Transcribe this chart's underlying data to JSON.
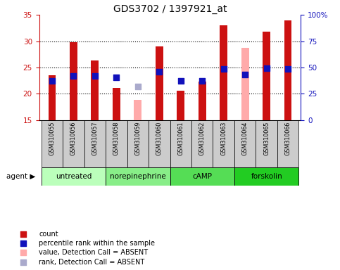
{
  "title": "GDS3702 / 1397921_at",
  "samples": [
    "GSM310055",
    "GSM310056",
    "GSM310057",
    "GSM310058",
    "GSM310059",
    "GSM310060",
    "GSM310061",
    "GSM310062",
    "GSM310063",
    "GSM310064",
    "GSM310065",
    "GSM310066"
  ],
  "agents": [
    {
      "label": "untreated",
      "start": 0,
      "end": 3,
      "color": "#bbffbb"
    },
    {
      "label": "norepinephrine",
      "start": 3,
      "end": 6,
      "color": "#88ee88"
    },
    {
      "label": "cAMP",
      "start": 6,
      "end": 9,
      "color": "#55dd55"
    },
    {
      "label": "forskolin",
      "start": 9,
      "end": 12,
      "color": "#22cc22"
    }
  ],
  "red_values": [
    23.5,
    29.8,
    26.3,
    21.1,
    null,
    29.0,
    20.6,
    22.3,
    33.0,
    null,
    31.8,
    34.0
  ],
  "pink_values": [
    null,
    null,
    null,
    null,
    18.8,
    null,
    null,
    null,
    null,
    28.7,
    null,
    null
  ],
  "blue_values": [
    22.5,
    23.4,
    23.4,
    23.1,
    null,
    24.2,
    22.5,
    22.5,
    24.7,
    23.7,
    24.9,
    24.7
  ],
  "lavender_values": [
    null,
    null,
    null,
    null,
    21.4,
    null,
    null,
    null,
    null,
    null,
    null,
    null
  ],
  "ymin": 15,
  "ymax": 35,
  "yticks_left": [
    15,
    20,
    25,
    30,
    35
  ],
  "yticks_right_pct": [
    0,
    25,
    50,
    75,
    100
  ],
  "bar_width": 0.35,
  "sq_size": 28,
  "red_color": "#cc1111",
  "pink_color": "#ffaaaa",
  "blue_color": "#1111bb",
  "lavender_color": "#aaaacc",
  "grid_color": "black",
  "tick_bg_color": "#cccccc",
  "legend": [
    {
      "color": "#cc1111",
      "label": "count"
    },
    {
      "color": "#1111bb",
      "label": "percentile rank within the sample"
    },
    {
      "color": "#ffaaaa",
      "label": "value, Detection Call = ABSENT"
    },
    {
      "color": "#aaaacc",
      "label": "rank, Detection Call = ABSENT"
    }
  ]
}
